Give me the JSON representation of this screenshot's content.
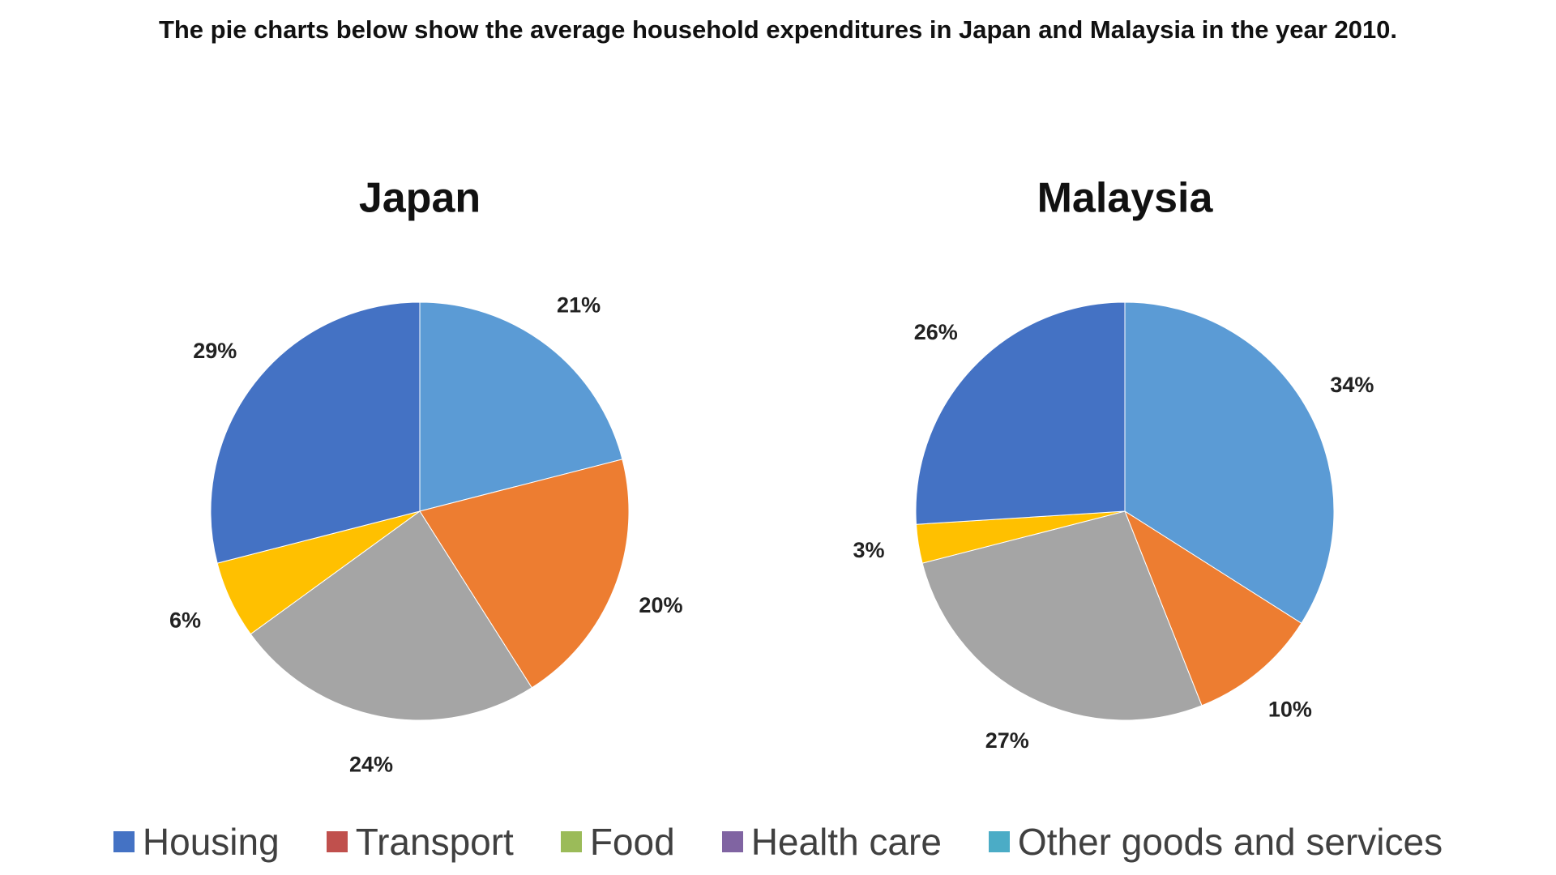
{
  "title": "The pie charts below show the average household expenditures in Japan and Malaysia in the year 2010.",
  "chart_data": [
    {
      "type": "pie",
      "title": "Japan",
      "values": [
        21,
        20,
        24,
        6,
        29
      ],
      "value_labels": [
        "21%",
        "20%",
        "24%",
        "6%",
        "29%"
      ],
      "colors": [
        "#5b9bd5",
        "#ed7d31",
        "#a5a5a5",
        "#ffc000",
        "#4472c4"
      ]
    },
    {
      "type": "pie",
      "title": "Malaysia",
      "values": [
        34,
        10,
        27,
        3,
        26
      ],
      "value_labels": [
        "34%",
        "10%",
        "27%",
        "3%",
        "26%"
      ],
      "colors": [
        "#5b9bd5",
        "#ed7d31",
        "#a5a5a5",
        "#ffc000",
        "#4472c4"
      ]
    }
  ],
  "legend": {
    "labels": [
      "Housing",
      "Transport",
      "Food",
      "Health care",
      "Other goods and services"
    ],
    "colors": [
      "#4472c4",
      "#c0504d",
      "#9bbb59",
      "#8064a2",
      "#4bacc6"
    ]
  }
}
